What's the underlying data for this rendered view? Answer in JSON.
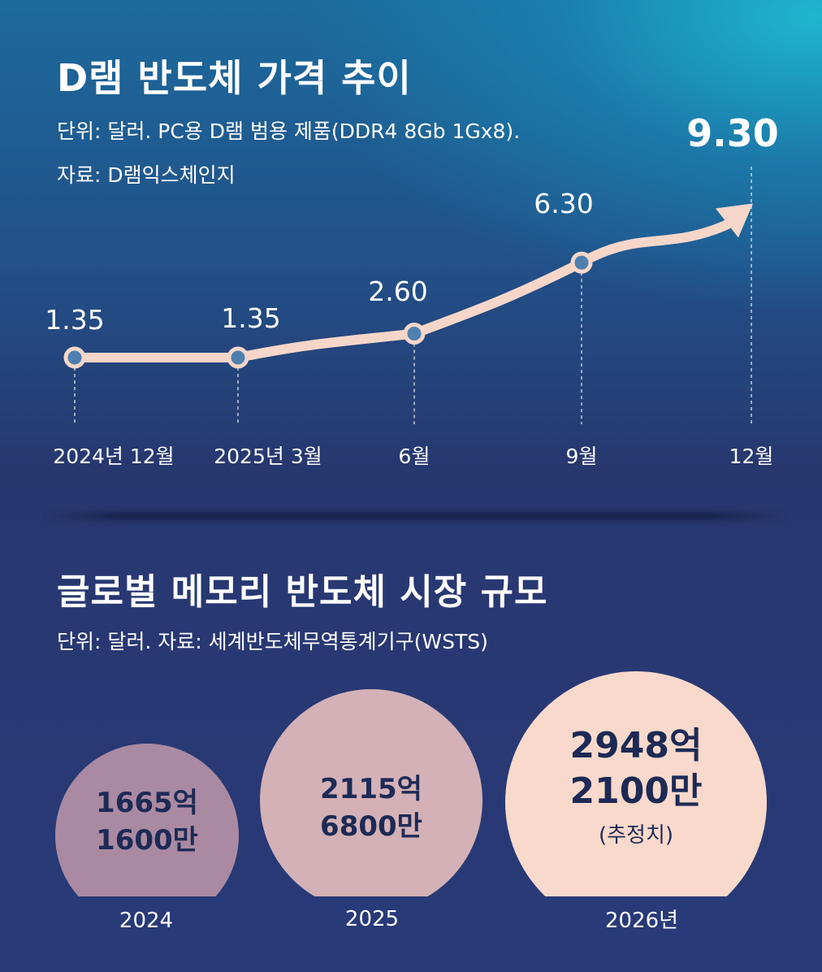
{
  "chart_data": [
    {
      "type": "line",
      "title": "D램 반도체 가격 추이",
      "subtitle": "단위: 달러. PC용 D램 범용 제품(DDR4 8Gb 1Gx8).",
      "source": "자료: D램익스체인지",
      "categories": [
        "2024년 12월",
        "2025년 3월",
        "6월",
        "9월",
        "12월"
      ],
      "values": [
        1.35,
        1.35,
        2.6,
        6.3,
        9.3
      ],
      "value_labels": [
        "1.35",
        "1.35",
        "2.60",
        "6.30",
        "9.30"
      ],
      "colors": {
        "line": "#f6d6c9"
      }
    },
    {
      "type": "bubble",
      "title": "글로벌 메모리 반도체 시장 규모",
      "subtitle": "단위: 달러. 자료: 세계반도체무역통계기구(WSTS)",
      "categories": [
        "2024",
        "2025",
        "2026년"
      ],
      "values": [
        166516000000,
        211568000000,
        294821000000
      ],
      "value_labels": [
        [
          "1665억",
          "1600만"
        ],
        [
          "2115억",
          "6800만"
        ],
        [
          "2948억",
          "2100만"
        ]
      ],
      "note": "(추정치)",
      "colors": [
        "#a98aa2",
        "#d3b1b6",
        "#f9d9cb"
      ]
    }
  ]
}
